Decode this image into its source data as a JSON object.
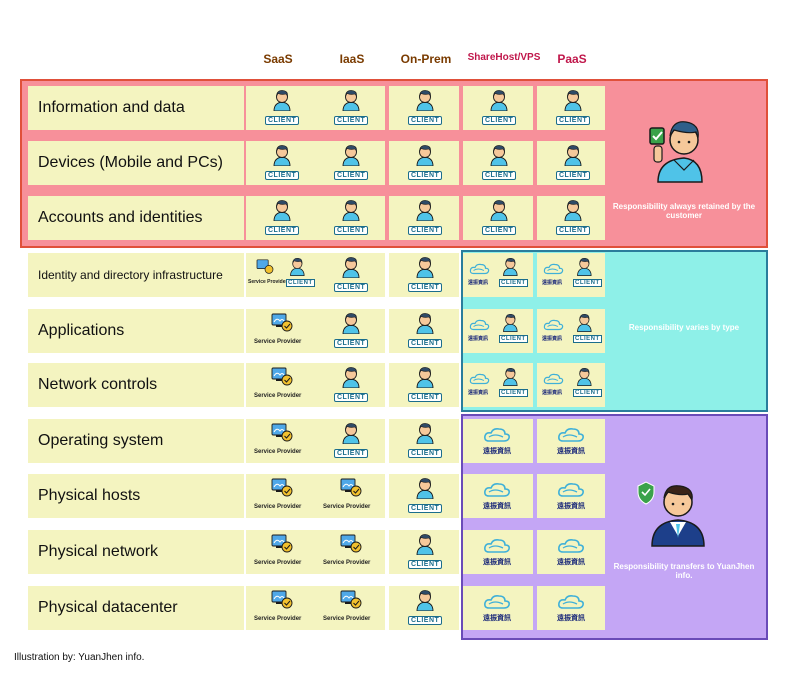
{
  "columns": [
    {
      "label": "SaaS",
      "color": "#7a3b00"
    },
    {
      "label": "IaaS",
      "color": "#7a3b00"
    },
    {
      "label": "On-Prem",
      "color": "#7a3b00"
    },
    {
      "label": "ShareHost/VPS",
      "color": "#c0174b"
    },
    {
      "label": "PaaS",
      "color": "#c0174b"
    }
  ],
  "rows": [
    {
      "label": "Information and data",
      "cells": [
        "client",
        "client",
        "client",
        "client",
        "client"
      ]
    },
    {
      "label": "Devices (Mobile and PCs)",
      "cells": [
        "client",
        "client",
        "client",
        "client",
        "client"
      ]
    },
    {
      "label": "Accounts and identities",
      "cells": [
        "client",
        "client",
        "client",
        "client",
        "client"
      ]
    },
    {
      "label": "Identity and directory infrastructure",
      "cells": [
        "sp+client",
        "client",
        "client",
        "cloud+client",
        "cloud+client"
      ]
    },
    {
      "label": "Applications",
      "cells": [
        "sp",
        "client",
        "client",
        "cloud+client",
        "cloud+client"
      ]
    },
    {
      "label": "Network controls",
      "cells": [
        "sp",
        "client",
        "client",
        "cloud+client",
        "cloud+client"
      ]
    },
    {
      "label": "Operating system",
      "cells": [
        "sp",
        "client",
        "client",
        "cloud",
        "cloud"
      ]
    },
    {
      "label": "Physical hosts",
      "cells": [
        "sp",
        "sp",
        "client",
        "cloud",
        "cloud"
      ]
    },
    {
      "label": "Physical network",
      "cells": [
        "sp",
        "sp",
        "client",
        "cloud",
        "cloud"
      ]
    },
    {
      "label": "Physical datacenter",
      "cells": [
        "sp",
        "sp",
        "client",
        "cloud",
        "cloud"
      ]
    }
  ],
  "labels": {
    "client": "CLIENT",
    "service_provider": "Service Provider",
    "cloud": "遠振資訊"
  },
  "bands": {
    "customer": {
      "note": "Responsibility always retained by the customer",
      "color": "#f7909a",
      "border": "#e0503a"
    },
    "varies": {
      "note": "Responsibility varies by type",
      "color": "#8ef0e8",
      "border": "#2a7d9c"
    },
    "provider": {
      "note": "Responsibility transfers to YuanJhen info.",
      "color": "#c4a6f5",
      "border": "#6a4bb8"
    }
  },
  "icons": [
    "person-icon",
    "service-provider-icon",
    "cloud-logo-icon",
    "customer-with-checkmark-icon",
    "businessman-with-shield-icon"
  ],
  "footer": "Illustration by: YuanJhen info."
}
